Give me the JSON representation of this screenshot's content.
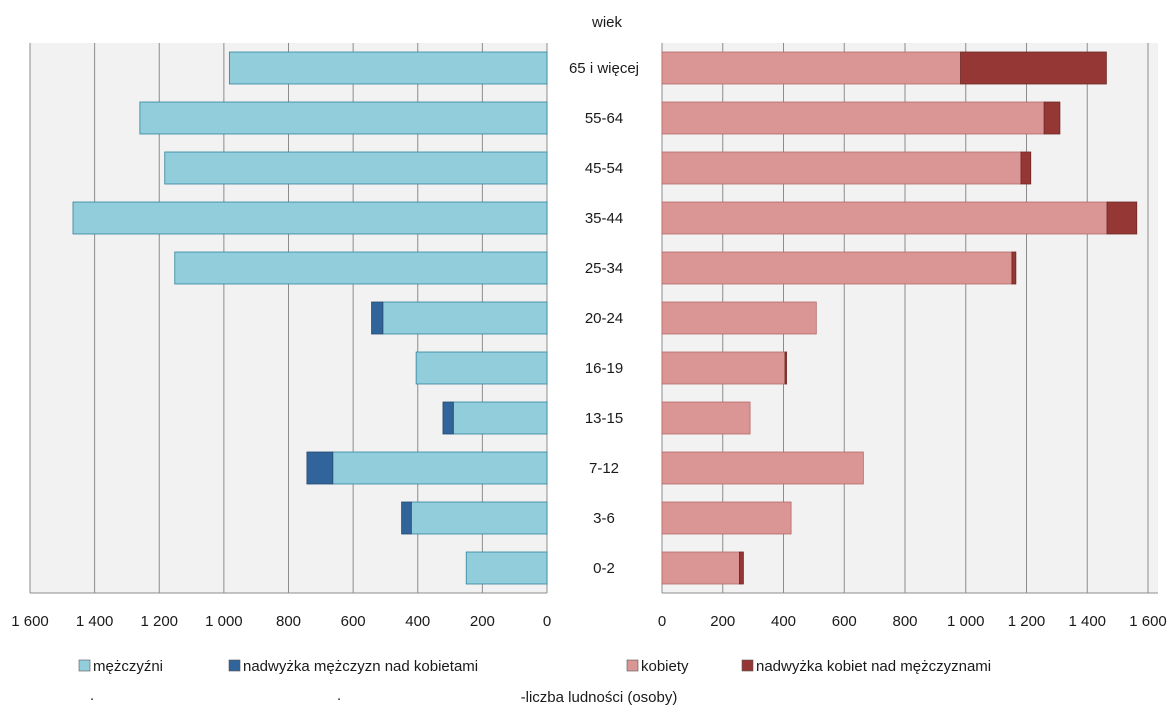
{
  "chart_data": {
    "type": "bar",
    "subtype": "population-pyramid",
    "age_axis_title": "wiek",
    "xlabel": "liczba ludności (osoby)",
    "categories": [
      "65 i więcej",
      "55-64",
      "45-54",
      "35-44",
      "25-34",
      "20-24",
      "16-19",
      "13-15",
      "7-12",
      "3-6",
      "0-2"
    ],
    "left_panel": {
      "xlim": [
        0,
        1600
      ],
      "ticks": [
        "1 600",
        "1 400",
        "1 200",
        "1 000",
        "800",
        "600",
        "400",
        "200",
        "0"
      ],
      "series": [
        {
          "name": "mężczyźni",
          "color": "#92cddc",
          "values": [
            983,
            1260,
            1183,
            1467,
            1152,
            508,
            405,
            290,
            663,
            420,
            250
          ]
        },
        {
          "name": "nadwyżka mężczyzn nad kobietami",
          "color": "#31649a",
          "values": [
            0,
            0,
            0,
            0,
            0,
            35,
            0,
            32,
            80,
            30,
            0
          ]
        }
      ]
    },
    "right_panel": {
      "xlim": [
        0,
        1600
      ],
      "ticks": [
        "0",
        "200",
        "400",
        "600",
        "800",
        "1 000",
        "1 200",
        "1 400",
        "1 600"
      ],
      "series": [
        {
          "name": "kobiety",
          "color": "#da9694",
          "values": [
            983,
            1258,
            1182,
            1465,
            1152,
            508,
            405,
            290,
            663,
            425,
            255
          ]
        },
        {
          "name": "nadwyżka kobiet nad mężczyznami",
          "color": "#953735",
          "values": [
            480,
            52,
            32,
            98,
            13,
            0,
            5,
            0,
            0,
            0,
            13
          ]
        }
      ]
    },
    "grid": true,
    "legend_position": "bottom",
    "legend": [
      "mężczyźni",
      "nadwyżka mężczyzn nad kobietami",
      "kobiety",
      "nadwyżka kobiet nad mężczyznami"
    ]
  }
}
